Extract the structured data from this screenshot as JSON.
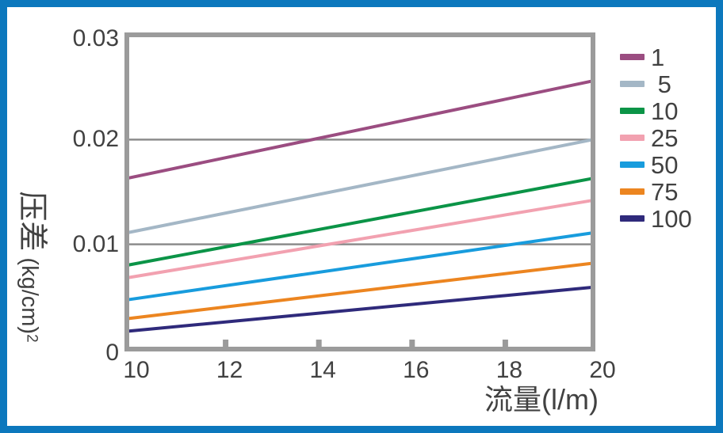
{
  "colors": {
    "border_blue": "#0c78bd",
    "frame_gray": "#9b9b9b",
    "grid_gray": "#8c8c8c",
    "tick_gray": "#9b9b9b",
    "text": "#414141",
    "background": "#ffffff"
  },
  "chart_data": {
    "type": "line",
    "title": "",
    "xlabel": "流量(l/m)",
    "ylabel_cjk": "压差",
    "ylabel_unit": " (kg/cm)",
    "ylabel_superscript": "2",
    "xlim": [
      10,
      20
    ],
    "ylim": [
      0,
      0.03
    ],
    "x_ticks": [
      10,
      12,
      14,
      16,
      18,
      20
    ],
    "x_tick_labels": [
      "10",
      "12",
      "14",
      "16",
      "18",
      "20"
    ],
    "x_tick_marks": [
      12,
      14,
      16,
      18
    ],
    "y_ticks": [
      0,
      0.01,
      0.02,
      0.03
    ],
    "y_tick_labels": [
      "0",
      "0.01",
      "0.02",
      "0.03"
    ],
    "grid_y_values": [
      0.01,
      0.02
    ],
    "grid": "horizontal-only",
    "legend_position": "right-outside",
    "series": [
      {
        "label": "1",
        "color": "#9b4d81",
        "x": [
          10,
          20
        ],
        "y": [
          0.0163,
          0.0256
        ]
      },
      {
        "label": " 5",
        "color": "#a4b7c6",
        "x": [
          10,
          20
        ],
        "y": [
          0.0111,
          0.02
        ]
      },
      {
        "label": "10",
        "color": "#0b9447",
        "x": [
          10,
          20
        ],
        "y": [
          0.008,
          0.0163
        ]
      },
      {
        "label": "25",
        "color": "#f2a1b0",
        "x": [
          10,
          20
        ],
        "y": [
          0.0068,
          0.0142
        ]
      },
      {
        "label": "50",
        "color": "#189cdd",
        "x": [
          10,
          20
        ],
        "y": [
          0.0047,
          0.0111
        ]
      },
      {
        "label": "75",
        "color": "#ec8520",
        "x": [
          10,
          20
        ],
        "y": [
          0.0029,
          0.0082
        ]
      },
      {
        "label": "100",
        "color": "#2f2a7b",
        "x": [
          10,
          20
        ],
        "y": [
          0.0017,
          0.0059
        ]
      }
    ]
  }
}
